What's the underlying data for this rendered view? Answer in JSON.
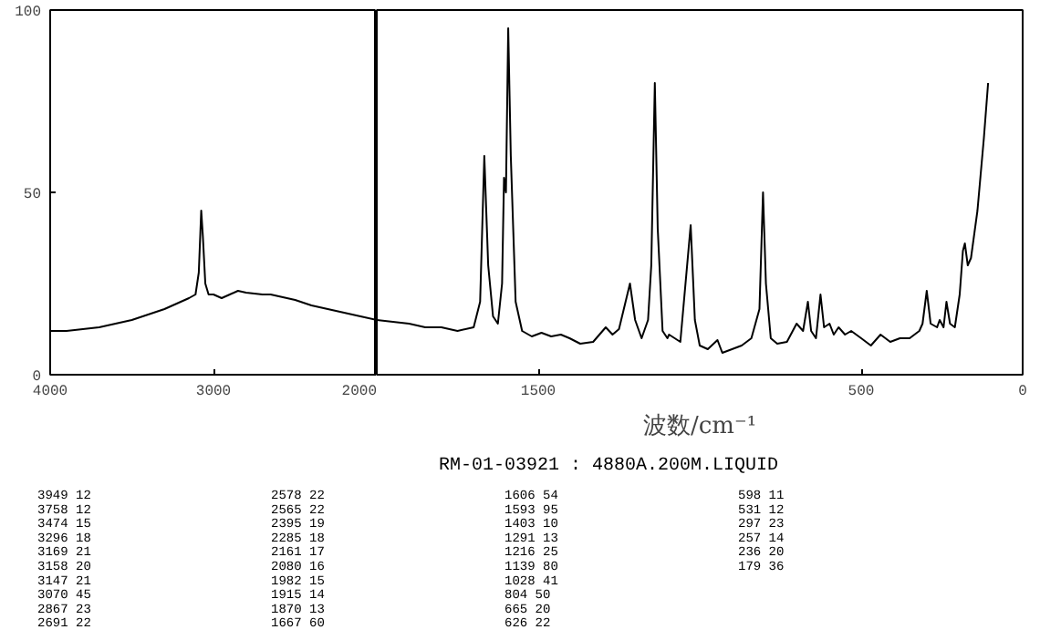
{
  "chart_data": [
    {
      "type": "line",
      "xlim": [
        4000,
        2000
      ],
      "ylim": [
        0,
        100
      ],
      "xticks": [
        4000,
        3000,
        2000
      ],
      "yticks": [
        0,
        50,
        100
      ],
      "x": [
        4000,
        3900,
        3800,
        3700,
        3600,
        3500,
        3400,
        3300,
        3200,
        3150,
        3110,
        3090,
        3075,
        3065,
        3050,
        3030,
        3000,
        2950,
        2900,
        2850,
        2800,
        2700,
        2650,
        2600,
        2500,
        2400,
        2300,
        2200,
        2100,
        2000
      ],
      "series": [
        {
          "color": "#000000",
          "values": [
            12,
            12,
            12.5,
            13,
            14,
            15,
            16.5,
            18,
            20,
            21,
            22,
            28,
            45,
            38,
            25,
            22,
            22,
            21,
            22,
            23,
            22.5,
            22,
            22,
            21.5,
            20.5,
            19,
            18,
            17,
            16,
            15
          ]
        }
      ]
    },
    {
      "type": "line",
      "xlim": [
        2000,
        0
      ],
      "ylim": [
        0,
        100
      ],
      "xticks": [
        1500,
        500,
        0
      ],
      "yticks": [
        0,
        50,
        100
      ],
      "tick_labels": "x",
      "xlabel": "波数/cm⁻¹",
      "x": [
        2000,
        1950,
        1900,
        1850,
        1800,
        1750,
        1700,
        1680,
        1667,
        1655,
        1640,
        1625,
        1612,
        1606,
        1600,
        1593,
        1585,
        1570,
        1550,
        1520,
        1490,
        1460,
        1430,
        1403,
        1370,
        1330,
        1291,
        1270,
        1250,
        1216,
        1200,
        1180,
        1160,
        1150,
        1139,
        1130,
        1115,
        1100,
        1095,
        1060,
        1028,
        1015,
        1000,
        975,
        945,
        930,
        900,
        870,
        840,
        815,
        804,
        795,
        780,
        760,
        730,
        700,
        680,
        665,
        655,
        640,
        626,
        615,
        598,
        585,
        570,
        550,
        531,
        500,
        470,
        440,
        410,
        380,
        350,
        320,
        310,
        297,
        285,
        265,
        257,
        245,
        236,
        225,
        210,
        195,
        185,
        179,
        170,
        160,
        140,
        120,
        107
      ],
      "series": [
        {
          "color": "#000000",
          "values": [
            15,
            14.5,
            14,
            13,
            13,
            12,
            13,
            20,
            60,
            30,
            16,
            14,
            25,
            54,
            50,
            95,
            60,
            20,
            12,
            10.5,
            11.5,
            10.5,
            11,
            10,
            8.5,
            9,
            13,
            11,
            12.5,
            25,
            15,
            10,
            15,
            30,
            80,
            40,
            12,
            10,
            11,
            9,
            41,
            15,
            8,
            7,
            9.5,
            6,
            7,
            8,
            10,
            18,
            50,
            25,
            10,
            8.5,
            9,
            14,
            12,
            20,
            12,
            10,
            22,
            13,
            14,
            11,
            13,
            11,
            12,
            10,
            8,
            11,
            9,
            10,
            10,
            12,
            14,
            23,
            14,
            13,
            15,
            13,
            20,
            14,
            13,
            22,
            34,
            36,
            30,
            32,
            45,
            65,
            80
          ]
        }
      ]
    },
    {
      "type": "other",
      "title": "RM-01-03921 : 4880A.200M.LIQUID",
      "annotations": [
        "3949 12",
        "3758 12",
        "3474 15",
        "3296 18",
        "3169 21",
        "3158 20",
        "3147 21",
        "3070 45",
        "2867 23",
        "2691 22",
        "2578 22",
        "2565 22",
        "2395 19",
        "2285 18",
        "2161 17",
        "2080 16",
        "1982 15",
        "1915 14",
        "1870 13",
        "1667 60",
        "1606 54",
        "1593 95",
        "1403 10",
        "1291 13",
        "1216 25",
        "1139 80",
        "1028 41",
        "804 50",
        "665 20",
        "626 22",
        "598 11",
        "531 12",
        "297 23",
        "257 14",
        "236 20",
        "179 36"
      ]
    }
  ]
}
